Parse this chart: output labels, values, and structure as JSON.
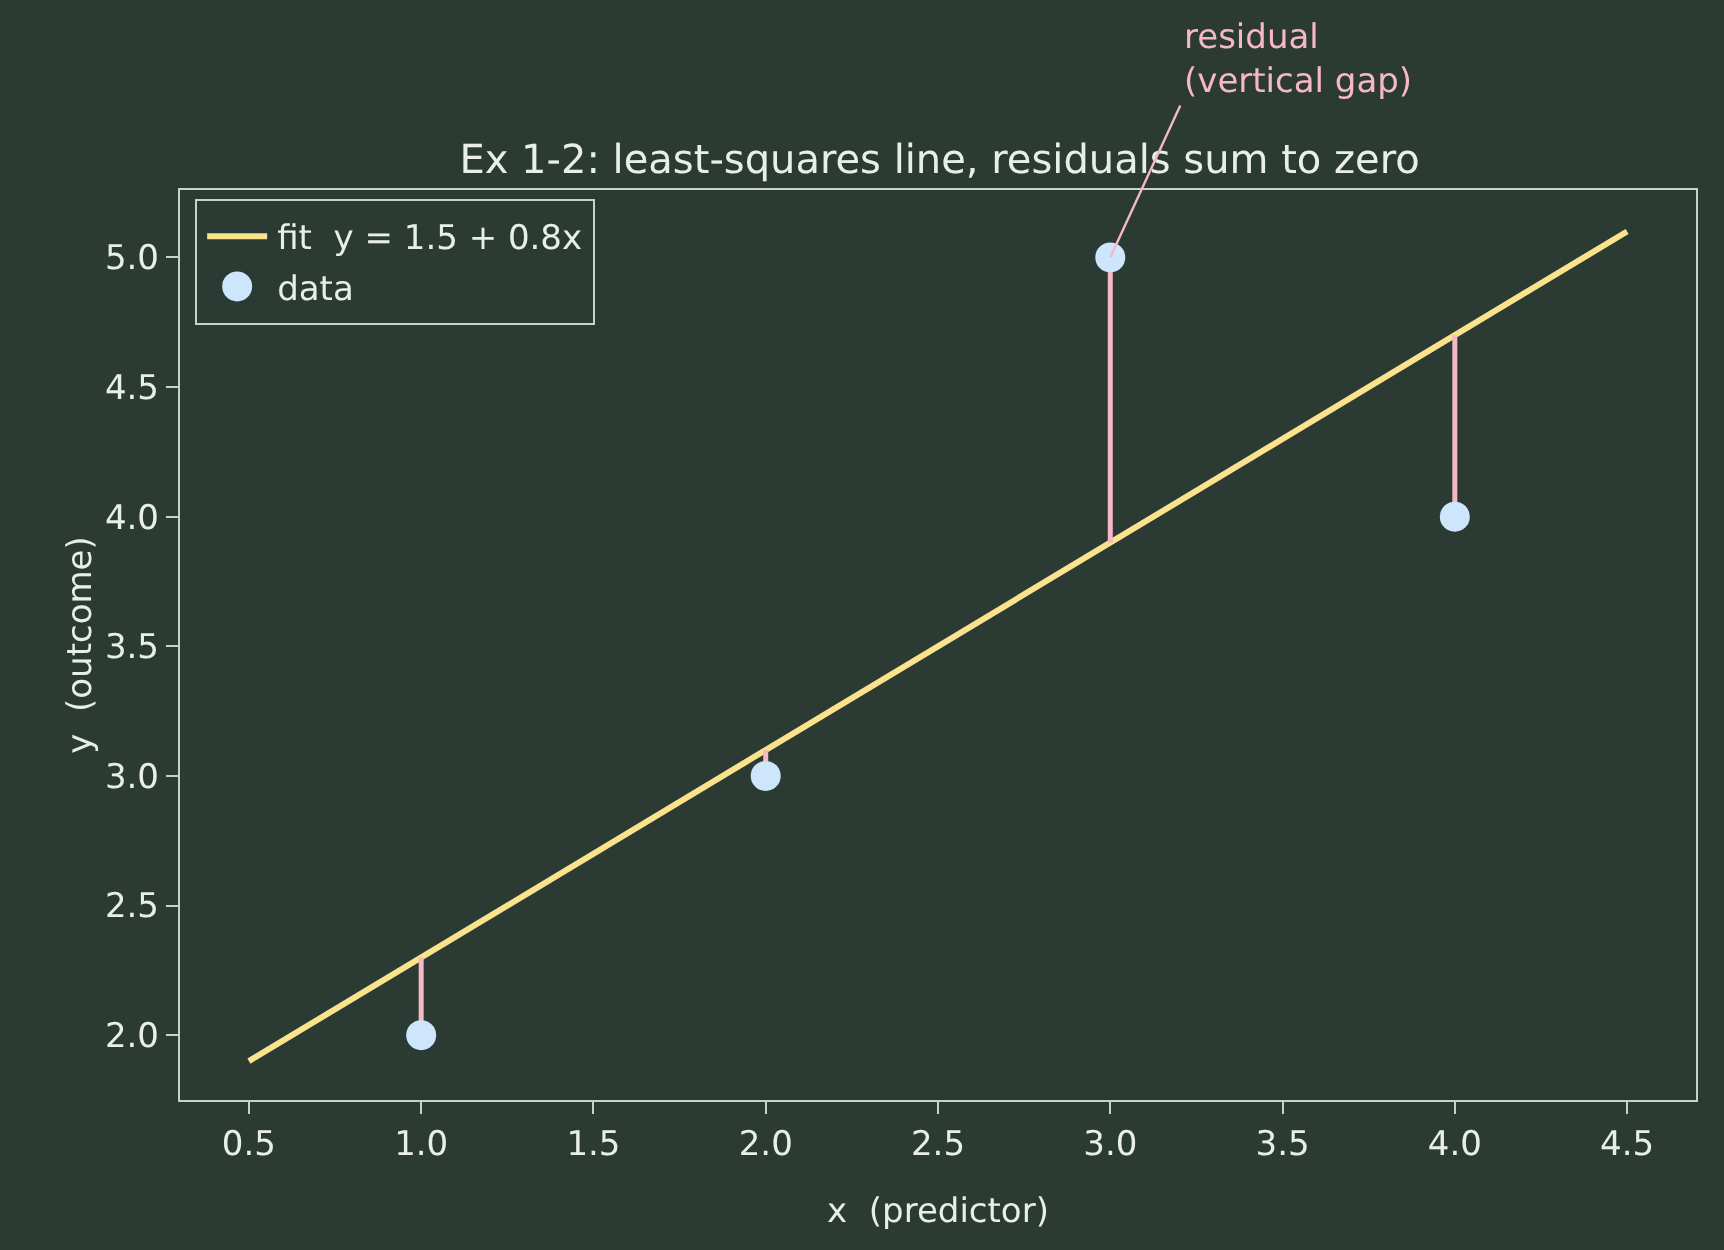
{
  "chart_data": {
    "type": "scatter",
    "title": "Ex 1-2: least-squares line, residuals sum to zero",
    "xlabel": "x  (predictor)",
    "ylabel": "y  (outcome)",
    "xlim": [
      0.3,
      4.7
    ],
    "xticks": [
      0.5,
      {
        "value": 1,
        "label": "1.0"
      },
      1.5,
      {
        "value": 2,
        "label": "2.0"
      },
      2.5,
      {
        "value": 3,
        "label": "3.0"
      },
      3.5,
      {
        "value": 4,
        "label": "4.0"
      },
      4.5
    ],
    "ylim": [
      1.75,
      5.26
    ],
    "yticks": [
      {
        "value": 2,
        "label": "2.0"
      },
      2.5,
      {
        "value": 3,
        "label": "3.0"
      },
      3.5,
      {
        "value": 4,
        "label": "4.0"
      },
      4.5,
      {
        "value": 5,
        "label": "5.0"
      }
    ],
    "series": [
      {
        "type": "line",
        "name": "fit  y = 1.5 + 0.8x",
        "color": "#fbe38e",
        "x": [
          0.5,
          4.5
        ],
        "values": [
          1.9,
          5.1
        ],
        "marker": "none"
      },
      {
        "name": "data",
        "color": "#cde6fb",
        "x": [
          1,
          2,
          3,
          4
        ],
        "values": [
          2,
          3,
          5,
          4
        ],
        "marker": "circle",
        "errors": [
          [
            2,
            2.3
          ],
          [
            3,
            3.1
          ],
          [
            3.9,
            5
          ],
          [
            4,
            4.7
          ]
        ]
      }
    ],
    "annotations": [
      {
        "text": "residual\n(vertical gap)",
        "x": 3,
        "y": 5
      }
    ],
    "grid": false,
    "legend": "top left"
  }
}
